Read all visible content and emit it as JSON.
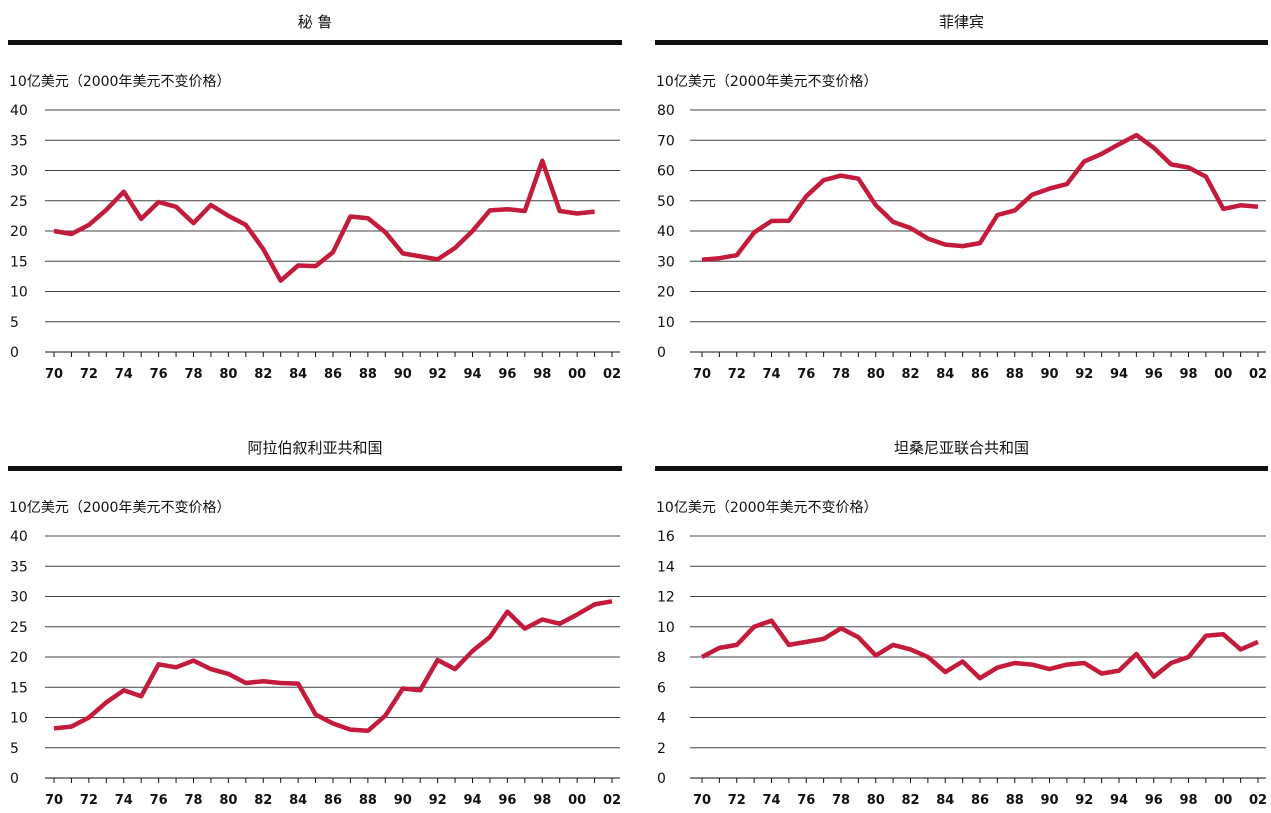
{
  "chart_data": [
    {
      "type": "line",
      "title": "秘 鲁",
      "y_label": "10亿美元（2000年美元不变价格）",
      "color": "#c41a3b",
      "categories": [
        "70",
        null,
        "72",
        null,
        "74",
        null,
        "76",
        null,
        "78",
        null,
        "80",
        null,
        "82",
        null,
        "84",
        null,
        "86",
        null,
        "88",
        null,
        "90",
        null,
        "92",
        null,
        "94",
        null,
        "96",
        null,
        "98",
        null,
        "00",
        null,
        "02"
      ],
      "values": [
        20,
        19.5,
        21,
        23.5,
        26.5,
        22,
        24.8,
        24,
        21.3,
        24.3,
        22.5,
        21,
        17,
        11.8,
        14.3,
        14.2,
        16.5,
        22.4,
        22.1,
        19.8,
        16.3,
        15.8,
        15.3,
        17.2,
        20,
        23.4,
        23.6,
        23.3,
        31.6,
        23.3,
        22.9,
        23.2,
        null
      ],
      "ylim": [
        0,
        40
      ],
      "yticks": [
        0,
        5,
        10,
        15,
        20,
        25,
        30,
        35,
        40
      ],
      "grid": true
    },
    {
      "type": "line",
      "title": "菲律宾",
      "y_label": "10亿美元（2000年美元不变价格）",
      "color": "#c41a3b",
      "categories": [
        "70",
        null,
        "72",
        null,
        "74",
        null,
        "76",
        null,
        "78",
        null,
        "80",
        null,
        "82",
        null,
        "84",
        null,
        "86",
        null,
        "88",
        null,
        "90",
        null,
        "92",
        null,
        "94",
        null,
        "96",
        null,
        "98",
        null,
        "00",
        null,
        "02"
      ],
      "values": [
        30.5,
        31,
        32,
        39.5,
        43.3,
        43.4,
        51.5,
        56.8,
        58.3,
        57.3,
        48.5,
        43,
        41,
        37.5,
        35.5,
        35,
        36,
        45.3,
        46.8,
        52,
        54,
        55.5,
        63,
        65.5,
        68.7,
        71.7,
        67.5,
        62,
        61,
        58,
        47.3,
        48.5,
        48
      ],
      "ylim": [
        0,
        80
      ],
      "yticks": [
        0,
        10,
        20,
        30,
        40,
        50,
        60,
        70,
        80
      ],
      "grid": true
    },
    {
      "type": "line",
      "title": "阿拉伯叙利亚共和国",
      "y_label": "10亿美元（2000年美元不变价格）",
      "color": "#c41a3b",
      "categories": [
        "70",
        null,
        "72",
        null,
        "74",
        null,
        "76",
        null,
        "78",
        null,
        "80",
        null,
        "82",
        null,
        "84",
        null,
        "86",
        null,
        "88",
        null,
        "90",
        null,
        "92",
        null,
        "94",
        null,
        "96",
        null,
        "98",
        null,
        "00",
        null,
        "02"
      ],
      "values": [
        8.2,
        8.5,
        10,
        12.5,
        14.5,
        13.5,
        18.8,
        18.3,
        19.4,
        18,
        17.2,
        15.7,
        16,
        15.7,
        15.6,
        10.5,
        9,
        8,
        7.8,
        10.3,
        14.8,
        14.5,
        19.5,
        18,
        21,
        23.3,
        27.5,
        24.7,
        26.2,
        25.5,
        27,
        28.7,
        29.2
      ],
      "ylim": [
        0,
        40
      ],
      "yticks": [
        0,
        5,
        10,
        15,
        20,
        25,
        30,
        35,
        40
      ],
      "grid": true
    },
    {
      "type": "line",
      "title": "坦桑尼亚联合共和国",
      "y_label": "10亿美元（2000年美元不变价格）",
      "color": "#c41a3b",
      "categories": [
        "70",
        null,
        "72",
        null,
        "74",
        null,
        "76",
        null,
        "78",
        null,
        "80",
        null,
        "82",
        null,
        "84",
        null,
        "86",
        null,
        "88",
        null,
        "90",
        null,
        "92",
        null,
        "94",
        null,
        "96",
        null,
        "98",
        null,
        "00",
        null,
        "02"
      ],
      "values": [
        8,
        8.6,
        8.8,
        10,
        10.4,
        8.8,
        9,
        9.2,
        9.9,
        9.3,
        8.1,
        8.8,
        8.5,
        8,
        7,
        7.7,
        6.6,
        7.3,
        7.6,
        7.5,
        7.2,
        7.5,
        7.6,
        6.9,
        7.1,
        8.2,
        6.7,
        7.6,
        8,
        9.4,
        9.5,
        8.5,
        9
      ],
      "ylim": [
        0,
        16
      ],
      "yticks": [
        0,
        2,
        4,
        6,
        8,
        10,
        12,
        14,
        16
      ],
      "grid": true
    }
  ]
}
